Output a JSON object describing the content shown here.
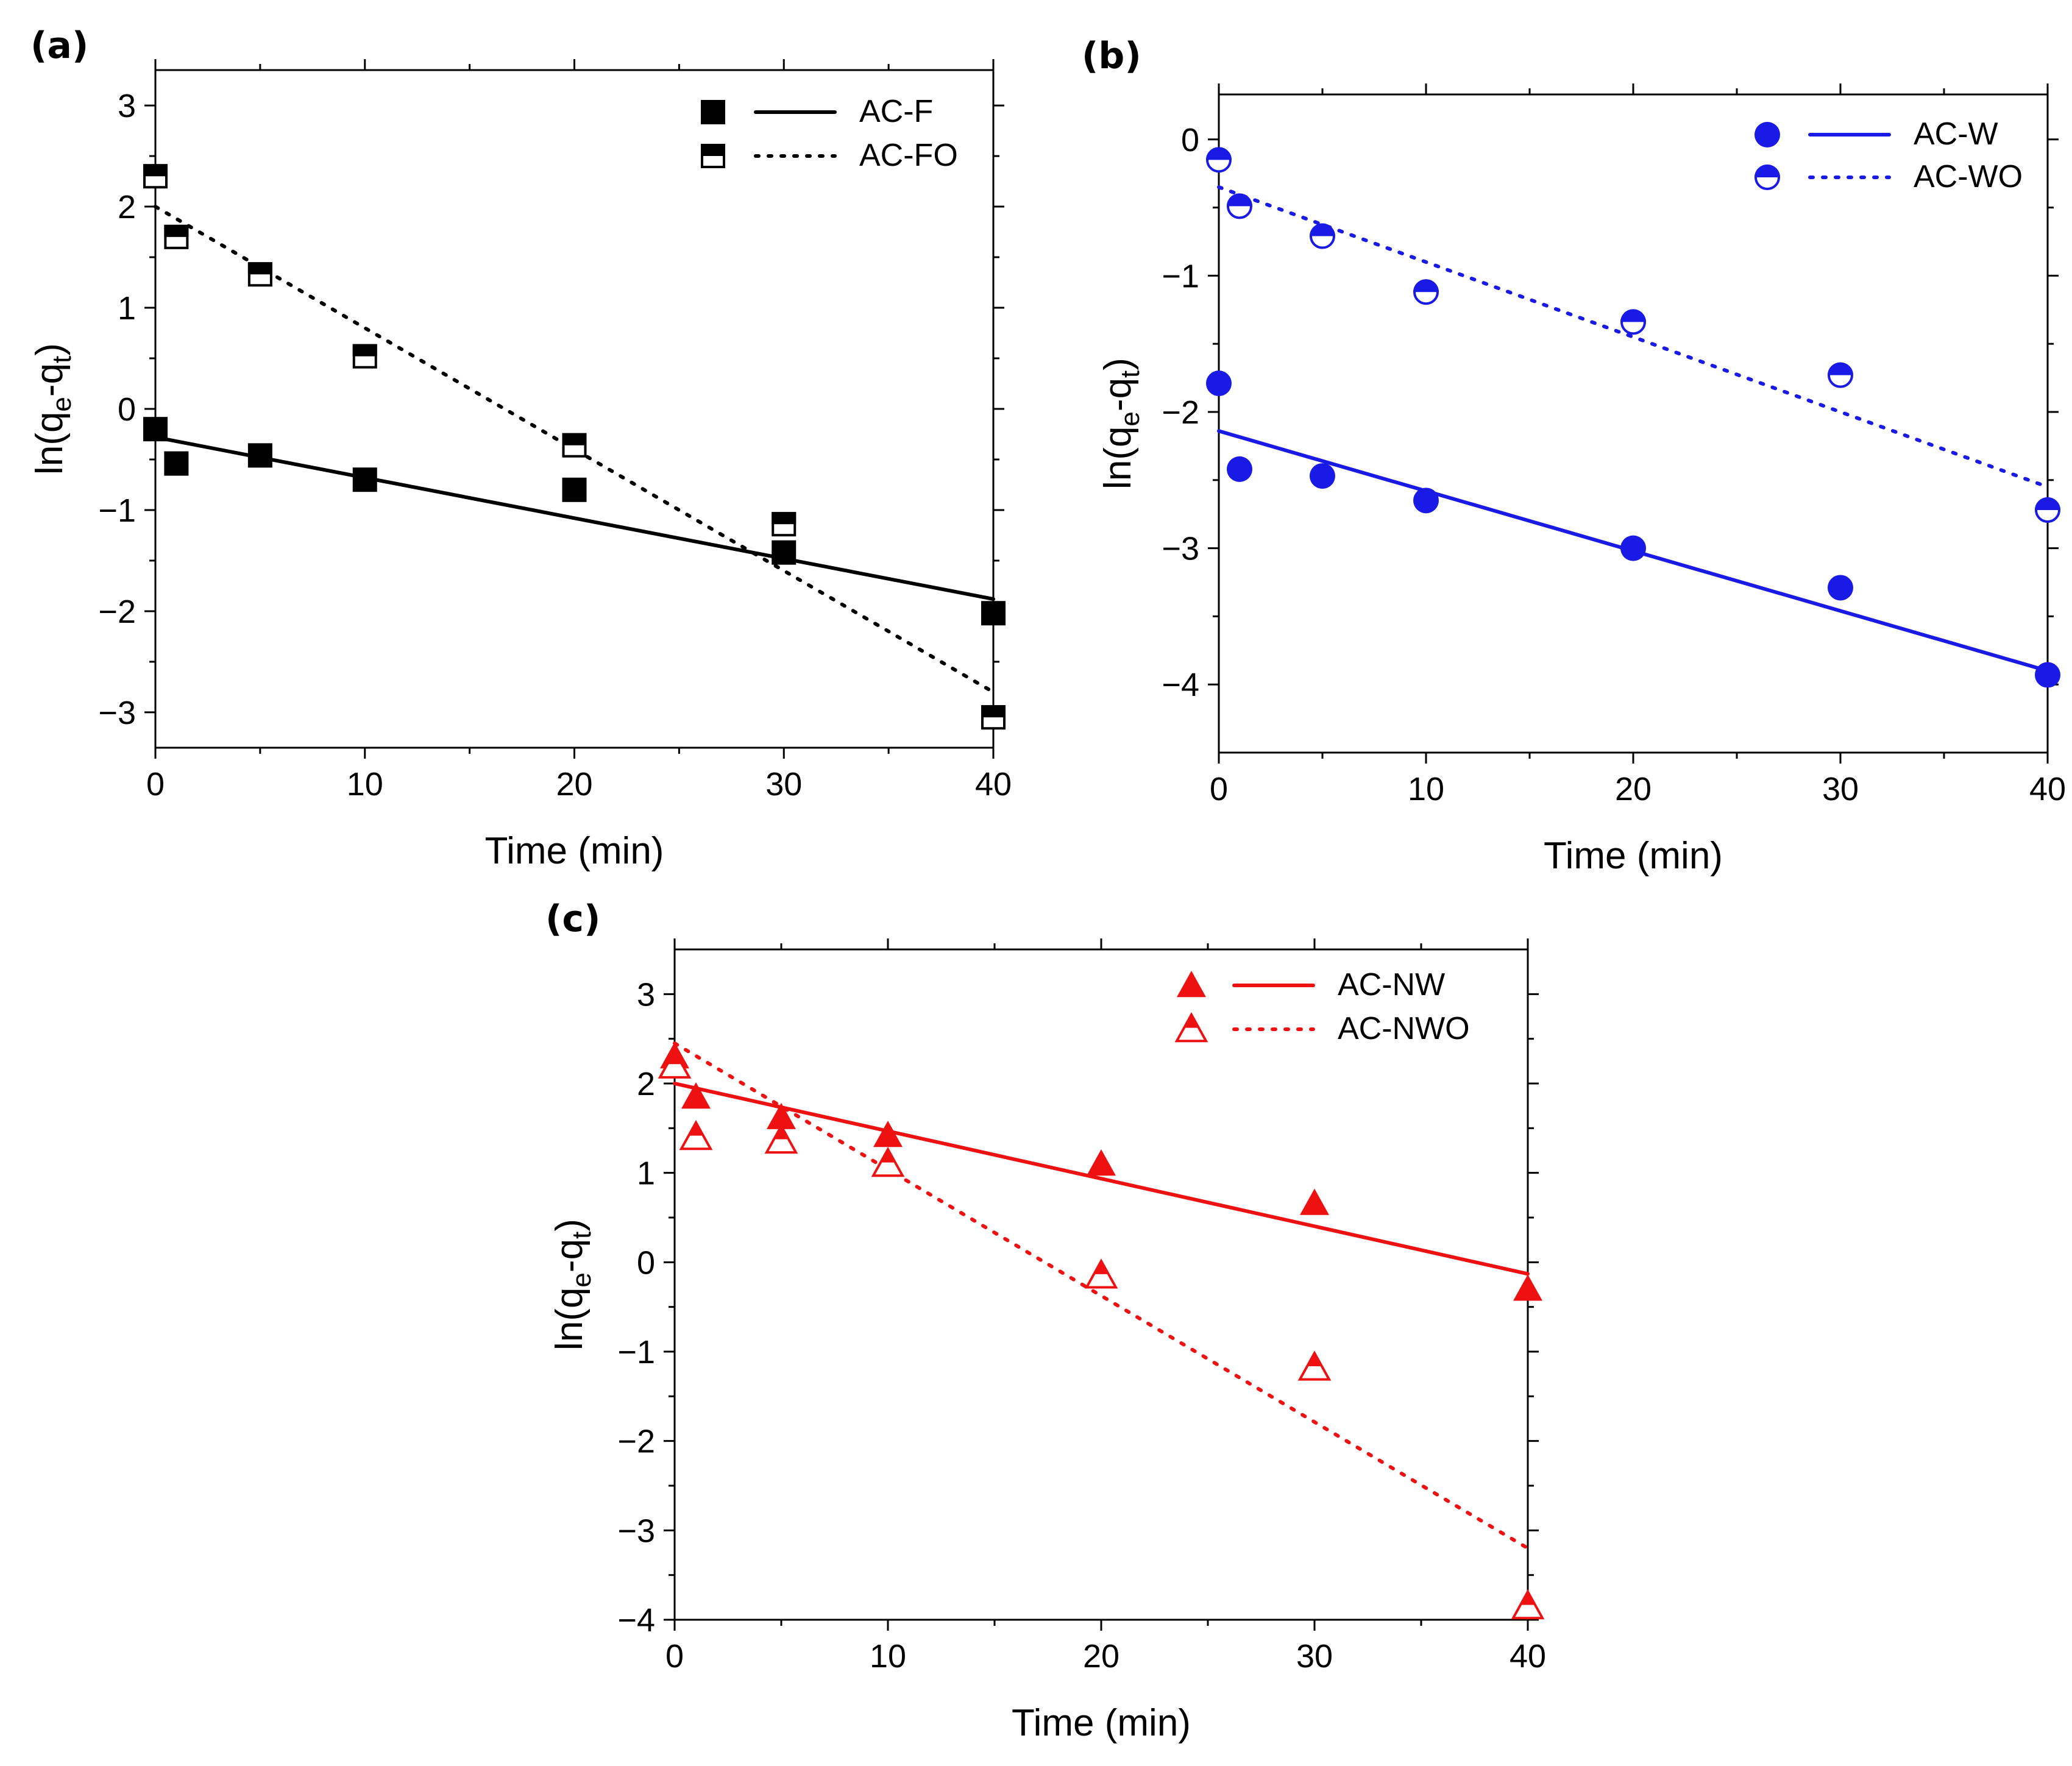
{
  "chart_data": [
    {
      "type": "scatter",
      "panel_label": "(a)",
      "xlabel": "Time (min)",
      "ylabel": {
        "main": "ln(q",
        "sub1": "e",
        "mid": "-q",
        "sub2": "t",
        "end": ")"
      },
      "xlim": [
        0,
        40
      ],
      "ylim": [
        -3.35,
        3.35
      ],
      "xticks": [
        "0",
        "10",
        "20",
        "30",
        "40"
      ],
      "yticks": [
        "3",
        "2",
        "1",
        "0",
        "−1",
        "−2",
        "−3"
      ],
      "legend_position": "top-right",
      "series": [
        {
          "name": "AC-F",
          "color": "#000000",
          "marker": "square",
          "fill": "full",
          "line_style": "solid",
          "x": [
            0,
            1,
            5,
            10,
            20,
            30,
            40
          ],
          "y": [
            -0.2,
            -0.54,
            -0.46,
            -0.7,
            -0.8,
            -1.42,
            -2.02
          ],
          "fit": {
            "x": [
              0,
              40
            ],
            "y": [
              -0.28,
              -1.88
            ]
          }
        },
        {
          "name": "AC-FO",
          "color": "#000000",
          "marker": "square",
          "fill": "top-half",
          "line_style": "dotted",
          "x": [
            0,
            1,
            5,
            10,
            20,
            30,
            40
          ],
          "y": [
            2.3,
            1.7,
            1.33,
            0.52,
            -0.36,
            -1.14,
            -3.05
          ],
          "fit": {
            "x": [
              0,
              40
            ],
            "y": [
              2.0,
              -2.8
            ]
          }
        }
      ]
    },
    {
      "type": "scatter",
      "panel_label": "(b)",
      "xlabel": "Time (min)",
      "ylabel": {
        "main": "ln(q",
        "sub1": "e",
        "mid": "-q",
        "sub2": "t",
        "end": ")"
      },
      "xlim": [
        0,
        40
      ],
      "ylim": [
        -4.5,
        0.33
      ],
      "xticks": [
        "0",
        "10",
        "20",
        "30",
        "40"
      ],
      "yticks": [
        "0",
        "−1",
        "−2",
        "−3",
        "−4"
      ],
      "legend_position": "top-right",
      "series": [
        {
          "name": "AC-W",
          "color": "#1a1ae6",
          "marker": "circle",
          "fill": "full",
          "line_style": "solid",
          "x": [
            0,
            1,
            5,
            10,
            20,
            30,
            40
          ],
          "y": [
            -1.79,
            -2.42,
            -2.47,
            -2.65,
            -3.0,
            -3.29,
            -3.93
          ],
          "fit": {
            "x": [
              0,
              40
            ],
            "y": [
              -2.14,
              -3.9
            ]
          }
        },
        {
          "name": "AC-WO",
          "color": "#1a1ae6",
          "marker": "circle",
          "fill": "top-half",
          "line_style": "dotted",
          "x": [
            0,
            1,
            5,
            10,
            20,
            30,
            40
          ],
          "y": [
            -0.15,
            -0.49,
            -0.71,
            -1.12,
            -1.34,
            -1.73,
            -2.72
          ],
          "fit": {
            "x": [
              0,
              40
            ],
            "y": [
              -0.35,
              -2.55
            ]
          }
        }
      ]
    },
    {
      "type": "scatter",
      "panel_label": "(c)",
      "xlabel": "Time (min)",
      "ylabel": {
        "main": "ln(q",
        "sub1": "e",
        "mid": "-q",
        "sub2": "t",
        "end": ")"
      },
      "xlim": [
        0,
        40
      ],
      "ylim": [
        -4.0,
        3.5
      ],
      "xticks": [
        "0",
        "10",
        "20",
        "30",
        "40"
      ],
      "yticks": [
        "3",
        "2",
        "1",
        "0",
        "−1",
        "−2",
        "−3",
        "−4"
      ],
      "legend_position": "top-right",
      "series": [
        {
          "name": "AC-NW",
          "color": "#ee1111",
          "marker": "triangle",
          "fill": "full",
          "line_style": "solid",
          "x": [
            0,
            1,
            5,
            10,
            20,
            30,
            40
          ],
          "y": [
            2.3,
            1.85,
            1.62,
            1.42,
            1.1,
            0.66,
            -0.3
          ],
          "fit": {
            "x": [
              0,
              40
            ],
            "y": [
              2.0,
              -0.13
            ]
          }
        },
        {
          "name": "AC-NWO",
          "color": "#ee1111",
          "marker": "triangle",
          "fill": "top-half",
          "line_style": "dotted",
          "x": [
            0,
            1,
            5,
            10,
            20,
            30,
            40
          ],
          "y": [
            2.2,
            1.4,
            1.36,
            1.1,
            -0.15,
            -1.18,
            -3.85
          ],
          "fit": {
            "x": [
              0,
              40
            ],
            "y": [
              2.45,
              -3.2
            ]
          }
        }
      ]
    }
  ]
}
